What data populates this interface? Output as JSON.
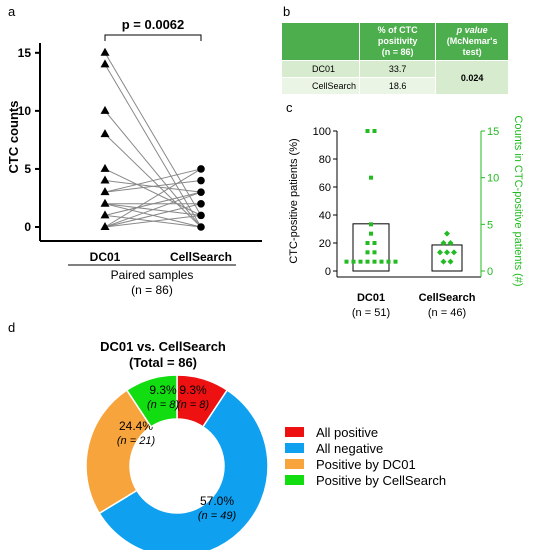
{
  "panels": {
    "a": "a",
    "b": "b",
    "c": "c",
    "d": "d"
  },
  "chart_data": [
    {
      "panel": "a",
      "type": "scatter",
      "ylabel": "CTC counts",
      "xlabel": "Paired samples",
      "xlabel_n": "(n = 86)",
      "categories": [
        "DC01",
        "CellSearch"
      ],
      "yticks": [
        0,
        5,
        10,
        15
      ],
      "ylim": [
        0,
        15.5
      ],
      "pvalue_label": "p = 0.0062",
      "pairs": [
        [
          15,
          1
        ],
        [
          14,
          0
        ],
        [
          10,
          0
        ],
        [
          8,
          0
        ],
        [
          5,
          1
        ],
        [
          4,
          3
        ],
        [
          3,
          4
        ],
        [
          3,
          5
        ],
        [
          2,
          0
        ],
        [
          2,
          1
        ],
        [
          2,
          2
        ],
        [
          1,
          3
        ],
        [
          1,
          0
        ],
        [
          0,
          5
        ],
        [
          0,
          3
        ],
        [
          0,
          2
        ],
        [
          0,
          1
        ]
      ]
    },
    {
      "panel": "c",
      "type": "scatter",
      "ylabel_left": "CTC-positive patients (%)",
      "ylabel_right": "Counts in CTC-positive patients (#)",
      "ylim_left": [
        0,
        100
      ],
      "ylim_right": [
        0,
        15
      ],
      "yticks_left": [
        0,
        20,
        40,
        60,
        80,
        100
      ],
      "yticks_right": [
        0,
        5,
        10,
        15
      ],
      "categories": [
        "DC01",
        "CellSearch"
      ],
      "category_n": [
        "(n = 51)",
        "(n = 46)"
      ],
      "bar_percent": [
        33.7,
        18.6
      ],
      "points": [
        {
          "category": "DC01",
          "count": 15
        },
        {
          "category": "DC01",
          "count": 15
        },
        {
          "category": "DC01",
          "count": 10
        },
        {
          "category": "DC01",
          "count": 5
        },
        {
          "category": "DC01",
          "count": 4
        },
        {
          "category": "DC01",
          "count": 3
        },
        {
          "category": "DC01",
          "count": 3
        },
        {
          "category": "DC01",
          "count": 2
        },
        {
          "category": "DC01",
          "count": 2
        },
        {
          "category": "DC01",
          "count": 1
        },
        {
          "category": "DC01",
          "count": 1
        },
        {
          "category": "DC01",
          "count": 1
        },
        {
          "category": "DC01",
          "count": 1
        },
        {
          "category": "DC01",
          "count": 1
        },
        {
          "category": "DC01",
          "count": 1
        },
        {
          "category": "DC01",
          "count": 1
        },
        {
          "category": "DC01",
          "count": 1
        },
        {
          "category": "CellSearch",
          "count": 4
        },
        {
          "category": "CellSearch",
          "count": 3
        },
        {
          "category": "CellSearch",
          "count": 3
        },
        {
          "category": "CellSearch",
          "count": 2
        },
        {
          "category": "CellSearch",
          "count": 2
        },
        {
          "category": "CellSearch",
          "count": 2
        },
        {
          "category": "CellSearch",
          "count": 1
        },
        {
          "category": "CellSearch",
          "count": 1
        }
      ],
      "colors": {
        "points": "#22bb22",
        "right_axis": "#22bb22"
      }
    },
    {
      "panel": "d",
      "type": "pie",
      "title_line1": "DC01 vs. CellSearch",
      "title_line2": "(Total = 86)",
      "slices": [
        {
          "name": "All positive",
          "value": 9.3,
          "n": 8,
          "label_pct": "9.3%",
          "label_n": "(n = 8)",
          "color": "#ee1111"
        },
        {
          "name": "All negative",
          "value": 57.0,
          "n": 49,
          "label_pct": "57.0%",
          "label_n": "(n = 49)",
          "color": "#0fa0f0"
        },
        {
          "name": "Positive by DC01",
          "value": 24.4,
          "n": 21,
          "label_pct": "24.4%",
          "label_n": "(n = 21)",
          "color": "#f7a43c"
        },
        {
          "name": "Positive by CellSearch",
          "value": 9.3,
          "n": 8,
          "label_pct": "9.3%",
          "label_n": "(n = 8)",
          "color": "#11dd11"
        }
      ]
    }
  ],
  "table_b": {
    "header": {
      "col1": "",
      "col2_line1": "% of CTC positivity",
      "col2_line2": "(n = 86)",
      "col3_line1": "p value",
      "col3_line2": "(McNemar's test)"
    },
    "rows": [
      {
        "name": "DC01",
        "value": "33.7"
      },
      {
        "name": "CellSearch",
        "value": "18.6"
      }
    ],
    "pvalue": "0.024"
  }
}
